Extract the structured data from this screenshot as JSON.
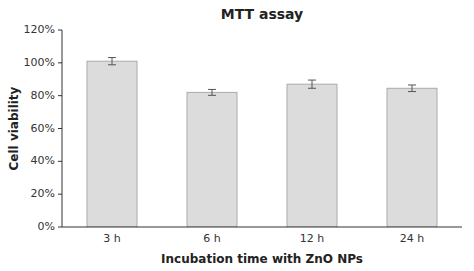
{
  "chart_data": {
    "type": "bar",
    "title": "MTT assay",
    "xlabel": "Incubation time with ZnO NPs",
    "ylabel": "Cell viability",
    "categories": [
      "3 h",
      "6 h",
      "12 h",
      "24 h"
    ],
    "values": [
      1.01,
      0.82,
      0.87,
      0.845
    ],
    "errors": [
      0.022,
      0.018,
      0.025,
      0.02
    ],
    "color": "#dcdcdc",
    "ylim": [
      0,
      1.2
    ],
    "yticks": [
      {
        "value": 0.0,
        "label": "0%"
      },
      {
        "value": 0.2,
        "label": "20%"
      },
      {
        "value": 0.4,
        "label": "40%"
      },
      {
        "value": 0.6,
        "label": "60%"
      },
      {
        "value": 0.8,
        "label": "80%"
      },
      {
        "value": 1.0,
        "label": "100%"
      },
      {
        "value": 1.2,
        "label": "120%"
      }
    ],
    "grid": false
  }
}
